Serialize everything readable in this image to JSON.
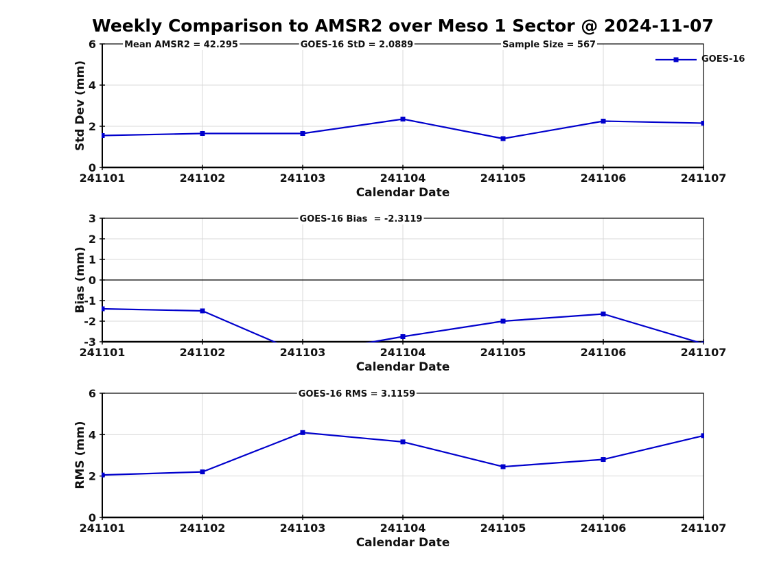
{
  "title": "Weekly Comparison to AMSR2 over Meso 1 Sector @ 2024-11-07",
  "legend": {
    "label": "GOES-16",
    "color": "#0000CC"
  },
  "colors": {
    "line": "#0000CC",
    "grid": "#D9D9D9",
    "axis": "#000000",
    "text": "#111111",
    "zero_line": "#000000",
    "background": "#FFFFFF"
  },
  "chart_data": [
    {
      "type": "line",
      "panel": "std-dev",
      "ylabel": "Std Dev (mm)",
      "xlabel": "Calendar Date",
      "categories": [
        "241101",
        "241102",
        "241103",
        "241104",
        "241105",
        "241106",
        "241107"
      ],
      "series": [
        {
          "name": "GOES-16",
          "values": [
            1.55,
            1.65,
            1.65,
            2.35,
            1.4,
            2.25,
            2.15
          ]
        }
      ],
      "ylim": [
        0,
        6
      ],
      "yticks": [
        0,
        2,
        4,
        6
      ],
      "grid": true,
      "legend_position": "top-right",
      "annotations": [
        "Mean AMSR2 = 42.295",
        "GOES-16 StD = 2.0889",
        "Sample Size = 567"
      ]
    },
    {
      "type": "line",
      "panel": "bias",
      "ylabel": "Bias (mm)",
      "xlabel": "Calendar Date",
      "categories": [
        "241101",
        "241102",
        "241103",
        "241104",
        "241105",
        "241106",
        "241107"
      ],
      "series": [
        {
          "name": "GOES-16",
          "values": [
            -1.4,
            -1.5,
            -3.6,
            -2.75,
            -2.0,
            -1.65,
            -3.1
          ]
        }
      ],
      "ylim": [
        -3,
        3
      ],
      "yticks": [
        -3,
        -2,
        -1,
        0,
        1,
        2,
        3
      ],
      "grid": true,
      "zero_line": true,
      "clipped_below_axis_dates": [
        "241103",
        "241107"
      ],
      "annotation": "GOES-16 Bias  = -2.3119"
    },
    {
      "type": "line",
      "panel": "rms",
      "ylabel": "RMS (mm)",
      "xlabel": "Calendar Date",
      "categories": [
        "241101",
        "241102",
        "241103",
        "241104",
        "241105",
        "241106",
        "241107"
      ],
      "series": [
        {
          "name": "GOES-16",
          "values": [
            2.05,
            2.2,
            4.1,
            3.65,
            2.45,
            2.8,
            3.95
          ]
        }
      ],
      "ylim": [
        0,
        6
      ],
      "yticks": [
        0,
        2,
        4,
        6
      ],
      "grid": true,
      "annotation": "GOES-16 RMS = 3.1159"
    }
  ]
}
